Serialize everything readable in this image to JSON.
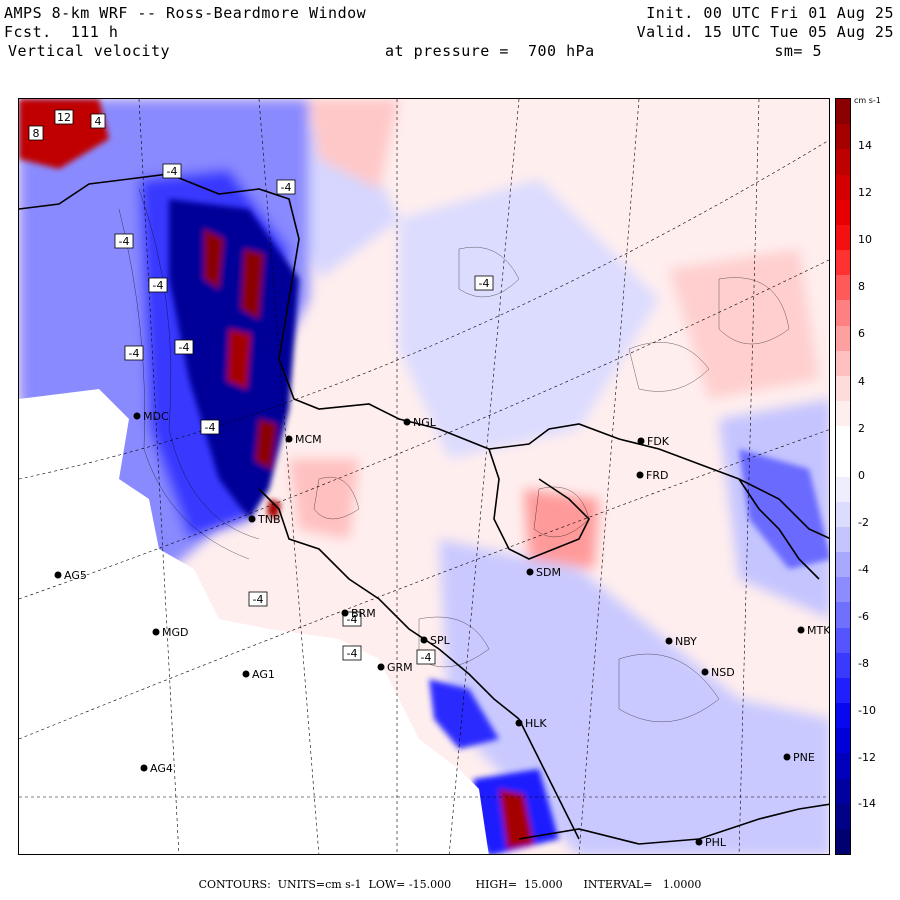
{
  "header": {
    "title": "AMPS 8-km WRF -- Ross-Beardmore Window",
    "forecast": "Fcst.  111 h",
    "variable": "Vertical velocity",
    "pressure": "at pressure =  700 hPa",
    "init": "Init. 00 UTC Fri 01 Aug 25",
    "valid": "Valid. 15 UTC Tue 05 Aug 25",
    "smoothing": "sm= 5"
  },
  "colorbar": {
    "units": "cm s-1",
    "labels": [
      "14",
      "12",
      "10",
      "8",
      "6",
      "4",
      "2",
      "0",
      "-2",
      "-4",
      "-6",
      "-8",
      "-10",
      "-12",
      "-14"
    ],
    "colors": [
      "#8b0000",
      "#a50000",
      "#be0000",
      "#d40000",
      "#e60000",
      "#f41010",
      "#ff3232",
      "#ff5a5a",
      "#ff8080",
      "#ffa0a0",
      "#ffc0c0",
      "#ffdcdc",
      "#ffeeee",
      "#ffffff",
      "#ffffff",
      "#eeeeff",
      "#dcdcff",
      "#c4c4ff",
      "#a8a8ff",
      "#8c8cff",
      "#7070ff",
      "#5555ff",
      "#3a3aff",
      "#2020ff",
      "#0808f0",
      "#0000d8",
      "#0000bc",
      "#0000a0",
      "#000088",
      "#000070"
    ]
  },
  "stations": [
    {
      "code": "NGL"
    },
    {
      "code": "FDK"
    },
    {
      "code": "FRD"
    },
    {
      "code": "MCM"
    },
    {
      "code": "MDC"
    },
    {
      "code": "TNB"
    },
    {
      "code": "SDM"
    },
    {
      "code": "AG5"
    },
    {
      "code": "MGD"
    },
    {
      "code": "NBY"
    },
    {
      "code": "MTK"
    },
    {
      "code": "BRM"
    },
    {
      "code": "SPL"
    },
    {
      "code": "AG1"
    },
    {
      "code": "GRM"
    },
    {
      "code": "NSD"
    },
    {
      "code": "HLK"
    },
    {
      "code": "PNE"
    },
    {
      "code": "AG4"
    },
    {
      "code": "PHL"
    }
  ],
  "contour_labels": [
    "12",
    "8",
    "4",
    "-4",
    "-4",
    "-4",
    "-4",
    "-4",
    "-4",
    "-4",
    "-4",
    "-4",
    "-4",
    "-4",
    "-4"
  ],
  "footer": "CONTOURS:  UNITS=cm s-1  LOW= -15.000       HIGH=  15.000      INTERVAL=   1.0000"
}
